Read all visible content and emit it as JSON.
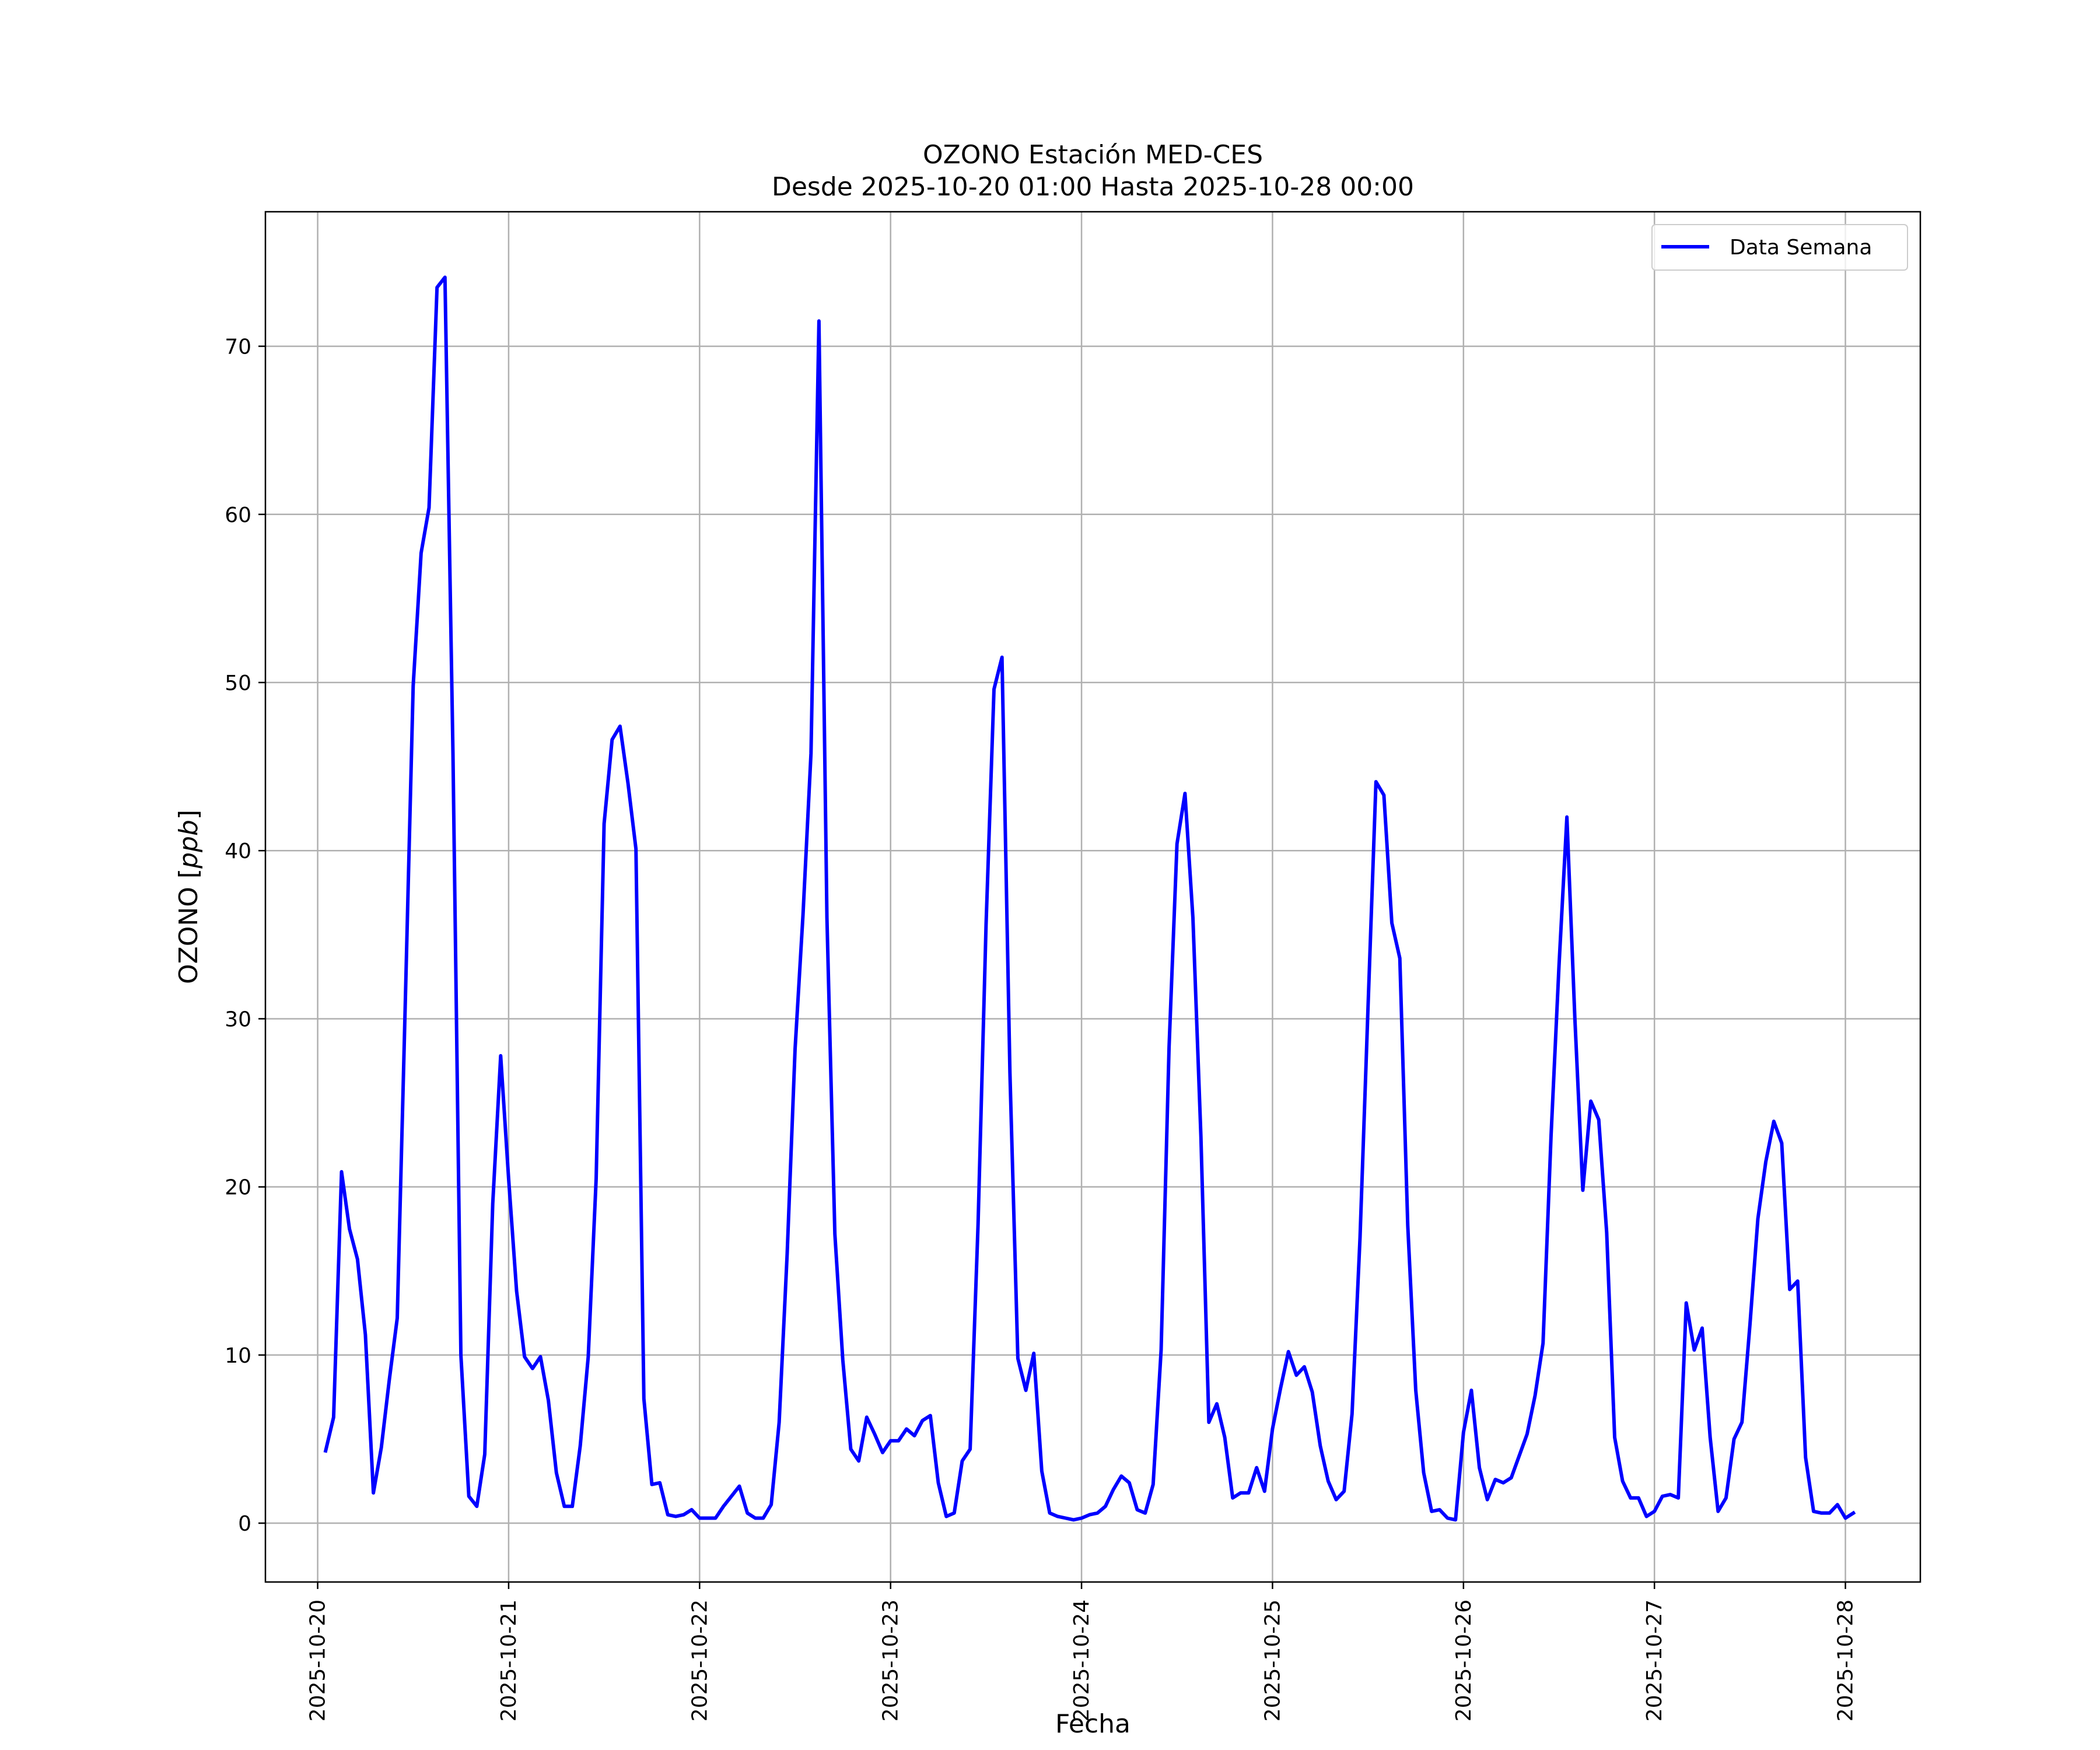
{
  "chart_data": {
    "type": "line",
    "title": "OZONO Estación MED-CES",
    "subtitle": "Desde 2025-10-20 01:00 Hasta 2025-10-28 00:00",
    "xlabel": "Fecha",
    "ylabel": "OZONO [ppb]",
    "ylabel_main": "OZONO ",
    "ylabel_unit": "ppb",
    "xlim": [
      "2025-10-19 17:26",
      "2025-10-28 09:25"
    ],
    "ylim": [
      -3.5,
      78.0
    ],
    "x_ticks": [
      "2025-10-20",
      "2025-10-21",
      "2025-10-22",
      "2025-10-23",
      "2025-10-24",
      "2025-10-25",
      "2025-10-26",
      "2025-10-27",
      "2025-10-28"
    ],
    "y_ticks": [
      0,
      10,
      20,
      30,
      40,
      50,
      60,
      70
    ],
    "grid": true,
    "legend_position": "top-right",
    "line_color": "#0000ff",
    "series": [
      {
        "name": "Data Semana",
        "start": "2025-10-20 01:00",
        "step_hours": 1,
        "values": [
          4.3,
          6.3,
          20.9,
          17.5,
          15.7,
          11.2,
          1.8,
          4.5,
          8.5,
          12.2,
          30.7,
          49.8,
          57.7,
          60.4,
          73.5,
          74.1,
          45.8,
          10.0,
          1.6,
          1.0,
          4.1,
          19.0,
          27.8,
          20.5,
          13.8,
          9.9,
          9.2,
          9.9,
          7.3,
          3.0,
          1.0,
          1.0,
          4.6,
          9.9,
          20.5,
          41.6,
          46.6,
          47.4,
          44.0,
          40.1,
          7.4,
          2.3,
          2.4,
          0.5,
          0.4,
          0.5,
          0.8,
          0.3,
          0.3,
          0.3,
          1.0,
          1.6,
          2.2,
          0.6,
          0.3,
          0.3,
          1.1,
          6.0,
          16.0,
          28.2,
          36.2,
          45.8,
          71.5,
          36.0,
          17.2,
          9.7,
          4.4,
          3.7,
          6.3,
          5.3,
          4.2,
          4.9,
          4.9,
          5.6,
          5.2,
          6.1,
          6.4,
          2.4,
          0.4,
          0.6,
          3.7,
          4.4,
          17.8,
          35.6,
          49.6,
          51.5,
          26.8,
          9.8,
          7.9,
          10.1,
          3.1,
          0.6,
          0.4,
          0.3,
          0.2,
          0.3,
          0.5,
          0.6,
          1.0,
          2.0,
          2.8,
          2.4,
          0.8,
          0.6,
          2.3,
          10.3,
          28.3,
          40.4,
          43.4,
          36.0,
          23.0,
          6.0,
          7.1,
          5.1,
          1.5,
          1.8,
          1.8,
          3.3,
          1.9,
          5.6,
          8.0,
          10.2,
          8.8,
          9.3,
          7.8,
          4.6,
          2.5,
          1.4,
          1.9,
          6.5,
          17.0,
          30.6,
          44.1,
          43.3,
          35.7,
          33.6,
          17.7,
          7.9,
          3.0,
          0.7,
          0.8,
          0.3,
          0.2,
          5.4,
          7.9,
          3.3,
          1.4,
          2.6,
          2.4,
          2.7,
          4.0,
          5.3,
          7.6,
          10.7,
          23.0,
          33.1,
          42.0,
          30.0,
          19.8,
          25.1,
          24.0,
          17.3,
          5.1,
          2.5,
          1.5,
          1.5,
          0.4,
          0.7,
          1.6,
          1.7,
          1.5,
          13.1,
          10.3,
          11.6,
          5.1,
          0.7,
          1.5,
          5.0,
          6.0,
          11.8,
          18.1,
          21.5,
          23.9,
          22.6,
          13.9,
          14.4,
          3.9,
          0.7,
          0.6,
          0.6,
          1.1,
          0.3,
          0.6
        ]
      }
    ]
  }
}
